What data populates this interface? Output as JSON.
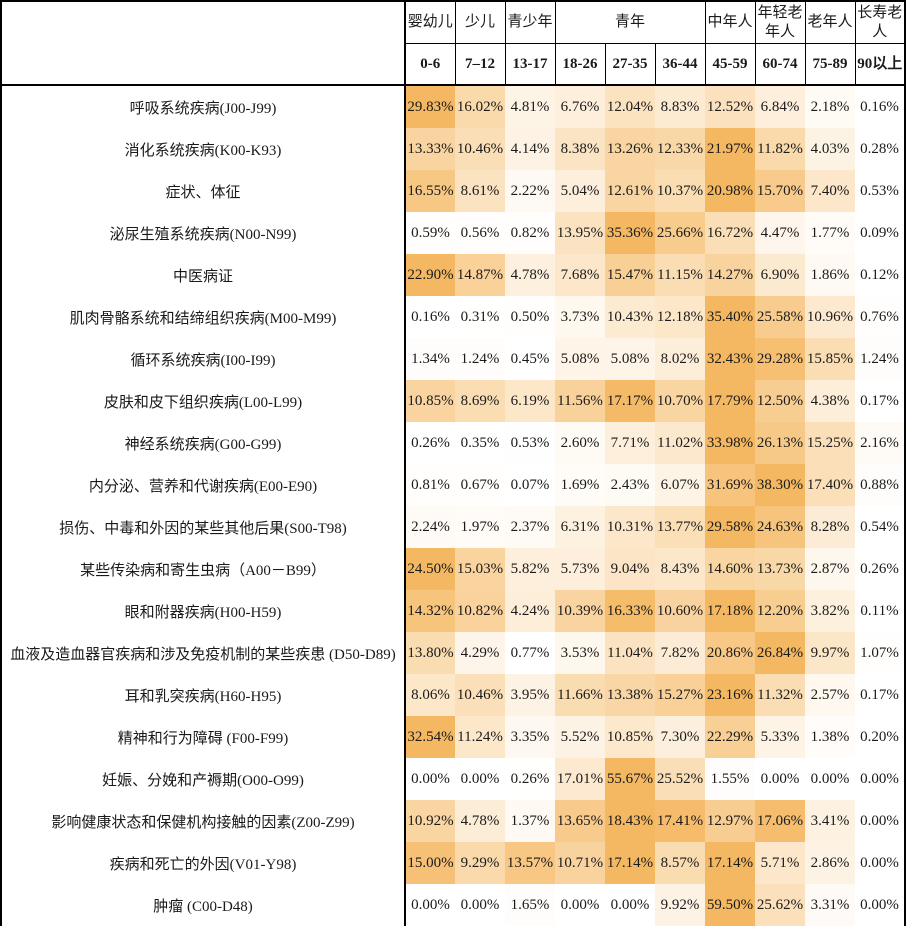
{
  "colors": {
    "heat_min": "#FFFFFF",
    "heat_max": "#F5B862",
    "border": "#000000",
    "text": "#1A1A1A"
  },
  "chart_data": {
    "type": "heatmap",
    "title": "",
    "unit": "%",
    "value_format": "0.00%",
    "color_scale": {
      "min_color": "#FFFFFF",
      "max_color": "#F5B862",
      "mode": "per-row-linear"
    },
    "column_groups": [
      {
        "label": "婴幼儿",
        "span": 1
      },
      {
        "label": "少儿",
        "span": 1
      },
      {
        "label": "青少年",
        "span": 1
      },
      {
        "label": "青年",
        "span": 3
      },
      {
        "label": "中年人",
        "span": 1
      },
      {
        "label": "年轻老年人",
        "span": 1
      },
      {
        "label": "老年人",
        "span": 1
      },
      {
        "label": "长寿老人",
        "span": 1
      }
    ],
    "columns": [
      "0-6",
      "7–12",
      "13-17",
      "18-26",
      "27-35",
      "36-44",
      "45-59",
      "60-74",
      "75-89",
      "90以上"
    ],
    "rows": [
      "呼吸系统疾病(J00-J99)",
      "消化系统疾病(K00-K93)",
      "症状、体征",
      "泌尿生殖系统疾病(N00-N99)",
      "中医病证",
      "肌肉骨骼系统和结缔组织疾病(M00-M99)",
      "循环系统疾病(I00-I99)",
      "皮肤和皮下组织疾病(L00-L99)",
      "神经系统疾病(G00-G99)",
      "内分泌、营养和代谢疾病(E00-E90)",
      "损伤、中毒和外因的某些其他后果(S00-T98)",
      "某些传染病和寄生虫病（A00－B99）",
      "眼和附器疾病(H00-H59)",
      "血液及造血器官疾病和涉及免疫机制的某些疾患 (D50-D89)",
      "耳和乳突疾病(H60-H95)",
      "精神和行为障碍 (F00-F99)",
      "妊娠、分娩和产褥期(O00-O99)",
      "影响健康状态和保健机构接触的因素(Z00-Z99)",
      "疾病和死亡的外因(V01-Y98)",
      "肿瘤 (C00-D48)"
    ],
    "values": [
      [
        29.83,
        16.02,
        4.81,
        6.76,
        12.04,
        8.83,
        12.52,
        6.84,
        2.18,
        0.16
      ],
      [
        13.33,
        10.46,
        4.14,
        8.38,
        13.26,
        12.33,
        21.97,
        11.82,
        4.03,
        0.28
      ],
      [
        16.55,
        8.61,
        2.22,
        5.04,
        12.61,
        10.37,
        20.98,
        15.7,
        7.4,
        0.53
      ],
      [
        0.59,
        0.56,
        0.82,
        13.95,
        35.36,
        25.66,
        16.72,
        4.47,
        1.77,
        0.09
      ],
      [
        22.9,
        14.87,
        4.78,
        7.68,
        15.47,
        11.15,
        14.27,
        6.9,
        1.86,
        0.12
      ],
      [
        0.16,
        0.31,
        0.5,
        3.73,
        10.43,
        12.18,
        35.4,
        25.58,
        10.96,
        0.76
      ],
      [
        1.34,
        1.24,
        0.45,
        5.08,
        5.08,
        8.02,
        32.43,
        29.28,
        15.85,
        1.24
      ],
      [
        10.85,
        8.69,
        6.19,
        11.56,
        17.17,
        10.7,
        17.79,
        12.5,
        4.38,
        0.17
      ],
      [
        0.26,
        0.35,
        0.53,
        2.6,
        7.71,
        11.02,
        33.98,
        26.13,
        15.25,
        2.16
      ],
      [
        0.81,
        0.67,
        0.07,
        1.69,
        2.43,
        6.07,
        31.69,
        38.3,
        17.4,
        0.88
      ],
      [
        2.24,
        1.97,
        2.37,
        6.31,
        10.31,
        13.77,
        29.58,
        24.63,
        8.28,
        0.54
      ],
      [
        24.5,
        15.03,
        5.82,
        5.73,
        9.04,
        8.43,
        14.6,
        13.73,
        2.87,
        0.26
      ],
      [
        14.32,
        10.82,
        4.24,
        10.39,
        16.33,
        10.6,
        17.18,
        12.2,
        3.82,
        0.11
      ],
      [
        13.8,
        4.29,
        0.77,
        3.53,
        11.04,
        7.82,
        20.86,
        26.84,
        9.97,
        1.07
      ],
      [
        8.06,
        10.46,
        3.95,
        11.66,
        13.38,
        15.27,
        23.16,
        11.32,
        2.57,
        0.17
      ],
      [
        32.54,
        11.24,
        3.35,
        5.52,
        10.85,
        7.3,
        22.29,
        5.33,
        1.38,
        0.2
      ],
      [
        0.0,
        0.0,
        0.26,
        17.01,
        55.67,
        25.52,
        1.55,
        0.0,
        0.0,
        0.0
      ],
      [
        10.92,
        4.78,
        1.37,
        13.65,
        18.43,
        17.41,
        12.97,
        17.06,
        3.41,
        0.0
      ],
      [
        15.0,
        9.29,
        13.57,
        10.71,
        17.14,
        8.57,
        17.14,
        5.71,
        2.86,
        0.0
      ],
      [
        0.0,
        0.0,
        1.65,
        0.0,
        0.0,
        9.92,
        59.5,
        25.62,
        3.31,
        0.0
      ]
    ]
  }
}
